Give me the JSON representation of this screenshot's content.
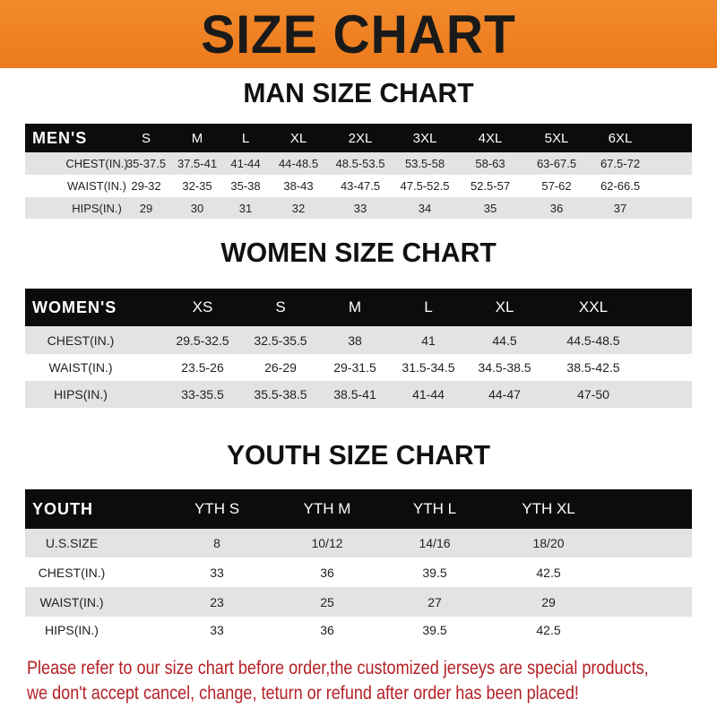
{
  "banner": {
    "title": "SIZE CHART"
  },
  "men": {
    "title": "MAN SIZE CHART",
    "header": [
      "MEN'S",
      "S",
      "M",
      "L",
      "XL",
      "2XL",
      "3XL",
      "4XL",
      "5XL",
      "6XL"
    ],
    "rows": [
      [
        "CHEST(IN.)",
        "35-37.5",
        "37.5-41",
        "41-44",
        "44-48.5",
        "48.5-53.5",
        "53.5-58",
        "58-63",
        "63-67.5",
        "67.5-72"
      ],
      [
        "WAIST(IN.)",
        "29-32",
        "32-35",
        "35-38",
        "38-43",
        "43-47.5",
        "47.5-52.5",
        "52.5-57",
        "57-62",
        "62-66.5"
      ],
      [
        "HIPS(IN.)",
        "29",
        "30",
        "31",
        "32",
        "33",
        "34",
        "35",
        "36",
        "37"
      ]
    ]
  },
  "women": {
    "title": "WOMEN SIZE CHART",
    "header": [
      "WOMEN'S",
      "XS",
      "S",
      "M",
      "L",
      "XL",
      "XXL"
    ],
    "rows": [
      [
        "CHEST(IN.)",
        "29.5-32.5",
        "32.5-35.5",
        "38",
        "41",
        "44.5",
        "44.5-48.5"
      ],
      [
        "WAIST(IN.)",
        "23.5-26",
        "26-29",
        "29-31.5",
        "31.5-34.5",
        "34.5-38.5",
        "38.5-42.5"
      ],
      [
        "HIPS(IN.)",
        "33-35.5",
        "35.5-38.5",
        "38.5-41",
        "41-44",
        "44-47",
        "47-50"
      ]
    ]
  },
  "youth": {
    "title": "YOUTH SIZE CHART",
    "header": [
      "YOUTH",
      "YTH S",
      "YTH M",
      "YTH L",
      "YTH XL"
    ],
    "rows": [
      [
        "U.S.SIZE",
        "8",
        "10/12",
        "14/16",
        "18/20"
      ],
      [
        "CHEST(IN.)",
        "33",
        "36",
        "39.5",
        "42.5"
      ],
      [
        "WAIST(IN.)",
        "23",
        "25",
        "27",
        "29"
      ],
      [
        "HIPS(IN.)",
        "33",
        "36",
        "39.5",
        "42.5"
      ]
    ]
  },
  "footer": {
    "line1": "Please refer to our size chart before order,the customized jerseys are special products,",
    "line2": "we don't accept cancel, change, teturn or refund after order has been placed!"
  },
  "colors": {
    "banner": "#ee7d22",
    "header_row": "#0e0b0b",
    "alt_row": "#e3e3e3",
    "footer_text": "#b42025"
  }
}
